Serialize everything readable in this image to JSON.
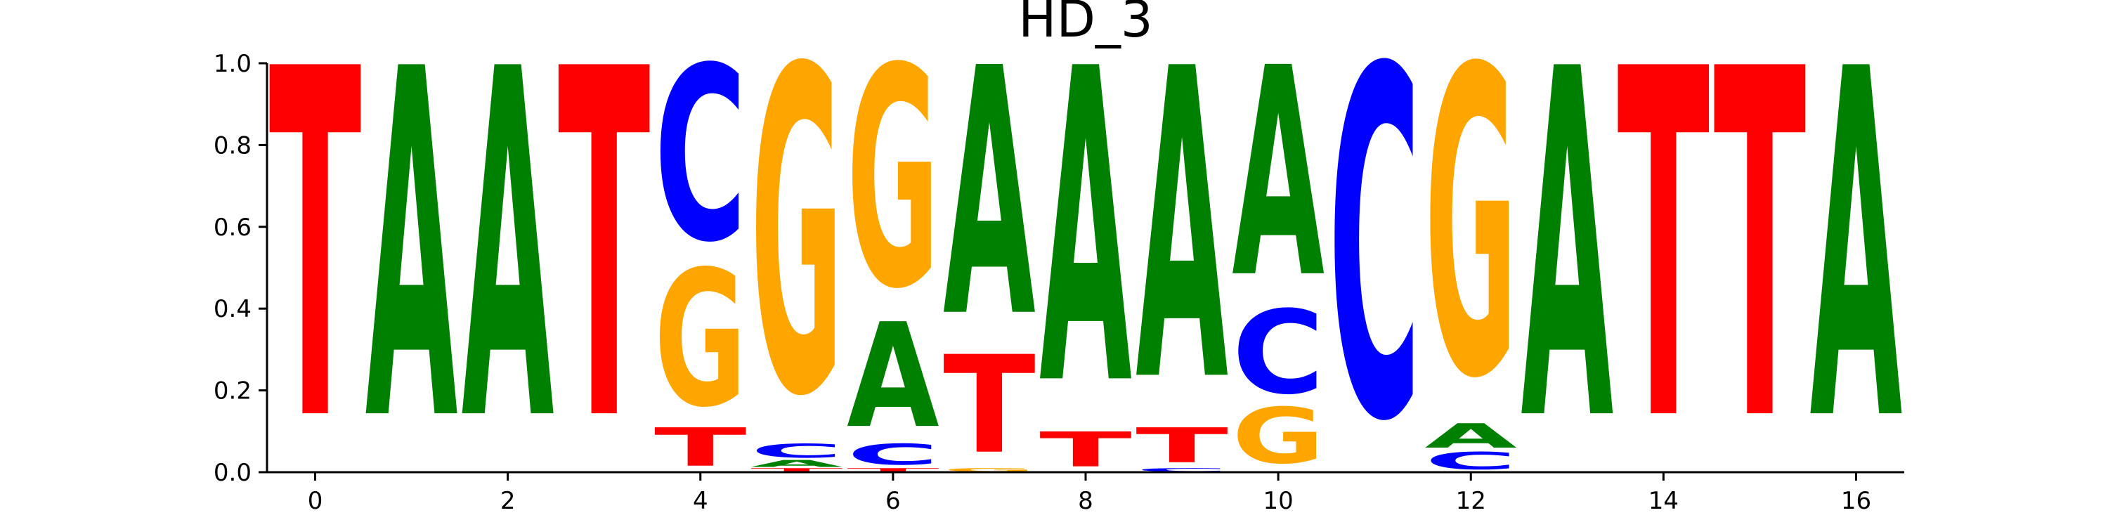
{
  "chart_data": {
    "type": "sequence-logo",
    "title": "HD_3",
    "xlabel": "",
    "ylabel": "",
    "xlim": [
      -0.5,
      16.5
    ],
    "ylim": [
      0,
      1.0
    ],
    "x_ticks": [
      "0",
      "2",
      "4",
      "6",
      "8",
      "10",
      "12",
      "14",
      "16"
    ],
    "x_tick_values": [
      0,
      2,
      4,
      6,
      8,
      10,
      12,
      14,
      16
    ],
    "y_ticks": [
      "0.0",
      "0.2",
      "0.4",
      "0.6",
      "0.8",
      "1.0"
    ],
    "y_tick_values": [
      0,
      0.2,
      0.4,
      0.6,
      0.8,
      1.0
    ],
    "grid": false,
    "colors": {
      "A": "#008000",
      "C": "#0000ff",
      "G": "#ffa500",
      "T": "#ff0000"
    },
    "positions": [
      {
        "pos": 0,
        "letters": [
          {
            "base": "T",
            "height": 1.0
          }
        ]
      },
      {
        "pos": 1,
        "letters": [
          {
            "base": "A",
            "height": 1.0
          }
        ]
      },
      {
        "pos": 2,
        "letters": [
          {
            "base": "A",
            "height": 1.0
          }
        ]
      },
      {
        "pos": 3,
        "letters": [
          {
            "base": "T",
            "height": 1.0
          }
        ]
      },
      {
        "pos": 4,
        "letters": [
          {
            "base": "T",
            "height": 0.11
          },
          {
            "base": "G",
            "height": 0.39
          },
          {
            "base": "C",
            "height": 0.5
          }
        ]
      },
      {
        "pos": 5,
        "letters": [
          {
            "base": "T",
            "height": 0.01
          },
          {
            "base": "A",
            "height": 0.02
          },
          {
            "base": "C",
            "height": 0.04
          },
          {
            "base": "G",
            "height": 0.93
          }
        ]
      },
      {
        "pos": 6,
        "letters": [
          {
            "base": "T",
            "height": 0.01
          },
          {
            "base": "C",
            "height": 0.06
          },
          {
            "base": "A",
            "height": 0.3
          },
          {
            "base": "G",
            "height": 0.63
          }
        ]
      },
      {
        "pos": 7,
        "letters": [
          {
            "base": "G",
            "height": 0.01
          },
          {
            "base": "T",
            "height": 0.28
          },
          {
            "base": "A",
            "height": 0.71
          }
        ]
      },
      {
        "pos": 8,
        "letters": [
          {
            "base": "T",
            "height": 0.1
          },
          {
            "base": "A",
            "height": 0.9
          }
        ]
      },
      {
        "pos": 9,
        "letters": [
          {
            "base": "C",
            "height": 0.01
          },
          {
            "base": "T",
            "height": 0.1
          },
          {
            "base": "A",
            "height": 0.89
          }
        ]
      },
      {
        "pos": 10,
        "letters": [
          {
            "base": "G",
            "height": 0.16
          },
          {
            "base": "C",
            "height": 0.24
          },
          {
            "base": "A",
            "height": 0.6
          }
        ]
      },
      {
        "pos": 11,
        "letters": [
          {
            "base": "C",
            "height": 1.0
          }
        ]
      },
      {
        "pos": 12,
        "letters": [
          {
            "base": "C",
            "height": 0.05
          },
          {
            "base": "A",
            "height": 0.07
          },
          {
            "base": "G",
            "height": 0.88
          }
        ]
      },
      {
        "pos": 13,
        "letters": [
          {
            "base": "A",
            "height": 1.0
          }
        ]
      },
      {
        "pos": 14,
        "letters": [
          {
            "base": "T",
            "height": 1.0
          }
        ]
      },
      {
        "pos": 15,
        "letters": [
          {
            "base": "T",
            "height": 1.0
          }
        ]
      },
      {
        "pos": 16,
        "letters": [
          {
            "base": "A",
            "height": 1.0
          }
        ]
      }
    ]
  }
}
